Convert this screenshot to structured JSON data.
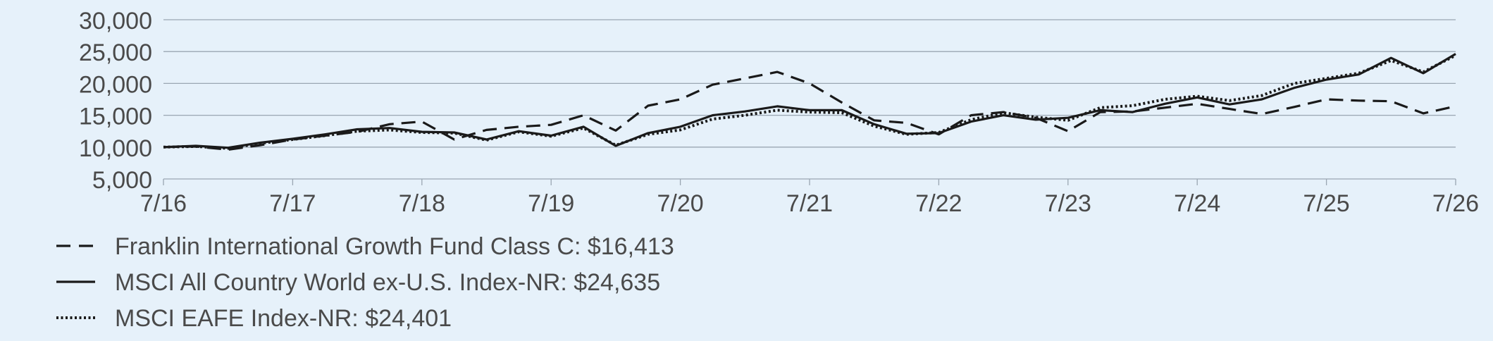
{
  "chart_data": {
    "type": "line",
    "title": "",
    "xlabel": "",
    "ylabel": "",
    "ylim": [
      5000,
      30000
    ],
    "xlim": [
      2016.5,
      2026.5
    ],
    "y_ticks": [
      5000,
      10000,
      15000,
      20000,
      25000,
      30000
    ],
    "y_tick_labels": [
      "5,000",
      "10,000",
      "15,000",
      "20,000",
      "25,000",
      "30,000"
    ],
    "x_ticks": [
      2016.5,
      2017.5,
      2018.5,
      2019.5,
      2020.5,
      2021.5,
      2022.5,
      2023.5,
      2024.5,
      2025.5,
      2026.5
    ],
    "x_tick_labels": [
      "7/16",
      "7/17",
      "7/18",
      "7/19",
      "7/20",
      "7/21",
      "7/22",
      "7/23",
      "7/24",
      "7/25",
      "7/26"
    ],
    "grid": "horizontal",
    "legend_position": "bottom-left",
    "colors": {
      "line": "#1a1a1a",
      "grid": "#9aa6b2",
      "background": "#e6f1fa",
      "text": "#4a4a4a"
    },
    "series": [
      {
        "name": "Franklin International Growth Fund Class C: $16,413",
        "style": "dashed",
        "x": [
          2016.5,
          2016.75,
          2017.0,
          2017.25,
          2017.5,
          2017.75,
          2018.0,
          2018.25,
          2018.5,
          2018.75,
          2019.0,
          2019.25,
          2019.5,
          2019.75,
          2020.0,
          2020.25,
          2020.5,
          2020.75,
          2021.0,
          2021.25,
          2021.5,
          2021.75,
          2022.0,
          2022.25,
          2022.5,
          2022.75,
          2023.0,
          2023.25,
          2023.5,
          2023.75,
          2024.0,
          2024.25,
          2024.5,
          2024.75,
          2025.0,
          2025.25,
          2025.5,
          2025.75,
          2026.0,
          2026.25,
          2026.5
        ],
        "values": [
          10000,
          10100,
          9600,
          10300,
          11200,
          11800,
          12400,
          13600,
          14000,
          11200,
          12700,
          13200,
          13500,
          15000,
          12600,
          16500,
          17500,
          19800,
          20800,
          21800,
          20000,
          17000,
          14200,
          13800,
          12000,
          15000,
          15500,
          14600,
          12500,
          15500,
          15600,
          16200,
          16800,
          16000,
          15200,
          16300,
          17500,
          17300,
          17200,
          15300,
          16413
        ]
      },
      {
        "name": "MSCI All Country World ex-U.S. Index-NR: $24,635",
        "style": "solid",
        "x": [
          2016.5,
          2016.75,
          2017.0,
          2017.25,
          2017.5,
          2017.75,
          2018.0,
          2018.25,
          2018.5,
          2018.75,
          2019.0,
          2019.25,
          2019.5,
          2019.75,
          2020.0,
          2020.25,
          2020.5,
          2020.75,
          2021.0,
          2021.25,
          2021.5,
          2021.75,
          2022.0,
          2022.25,
          2022.5,
          2022.75,
          2023.0,
          2023.25,
          2023.5,
          2023.75,
          2024.0,
          2024.25,
          2024.5,
          2024.75,
          2025.0,
          2025.25,
          2025.5,
          2025.75,
          2026.0,
          2026.25,
          2026.5
        ],
        "values": [
          10000,
          10200,
          9900,
          10700,
          11300,
          12000,
          12800,
          13000,
          12400,
          12300,
          11200,
          12500,
          11800,
          13200,
          10200,
          12200,
          13200,
          15000,
          15600,
          16400,
          15800,
          15800,
          13600,
          12100,
          12200,
          14000,
          15000,
          14300,
          14600,
          15800,
          15500,
          16800,
          17800,
          16700,
          17500,
          19300,
          20600,
          21400,
          24000,
          21600,
          24635
        ]
      },
      {
        "name": "MSCI EAFE Index-NR: $24,401",
        "style": "dotted",
        "x": [
          2016.5,
          2016.75,
          2017.0,
          2017.25,
          2017.5,
          2017.75,
          2018.0,
          2018.25,
          2018.5,
          2018.75,
          2019.0,
          2019.25,
          2019.5,
          2019.75,
          2020.0,
          2020.25,
          2020.5,
          2020.75,
          2021.0,
          2021.25,
          2021.5,
          2021.75,
          2022.0,
          2022.25,
          2022.5,
          2022.75,
          2023.0,
          2023.25,
          2023.5,
          2023.75,
          2024.0,
          2024.25,
          2024.5,
          2024.75,
          2025.0,
          2025.25,
          2025.5,
          2025.75,
          2026.0,
          2026.25,
          2026.5
        ],
        "values": [
          10000,
          10100,
          9800,
          10600,
          11200,
          11800,
          12500,
          12700,
          12300,
          12200,
          11100,
          12400,
          11700,
          13000,
          10300,
          12000,
          12700,
          14400,
          15000,
          15800,
          15500,
          15400,
          13300,
          12000,
          12300,
          14300,
          15400,
          14700,
          14200,
          16200,
          16500,
          17500,
          18000,
          17300,
          18100,
          20000,
          20800,
          21600,
          23600,
          21800,
          24401
        ]
      }
    ]
  }
}
